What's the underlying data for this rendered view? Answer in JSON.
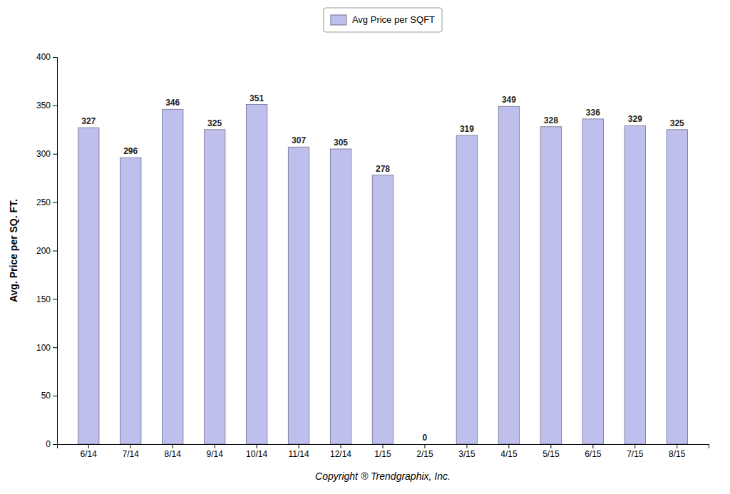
{
  "chart_data": {
    "type": "bar",
    "xlabel": "Copyright ® Trendgraphix, Inc.",
    "ylabel": "Avg. Price per SQ. FT.",
    "categories": [
      "6/14",
      "7/14",
      "8/14",
      "9/14",
      "10/14",
      "11/14",
      "12/14",
      "1/15",
      "2/15",
      "3/15",
      "4/15",
      "5/15",
      "6/15",
      "7/15",
      "8/15"
    ],
    "series": [
      {
        "name": "Avg Price per SQFT",
        "color": "#bfbfee",
        "values": [
          327,
          296,
          346,
          325,
          351,
          307,
          305,
          278,
          0,
          319,
          349,
          328,
          336,
          329,
          325
        ]
      }
    ],
    "ylim": [
      0,
      400
    ],
    "yticks": [
      0,
      50,
      100,
      150,
      200,
      250,
      300,
      350,
      400
    ],
    "grid": false,
    "legend": "top",
    "data_labels": true
  }
}
